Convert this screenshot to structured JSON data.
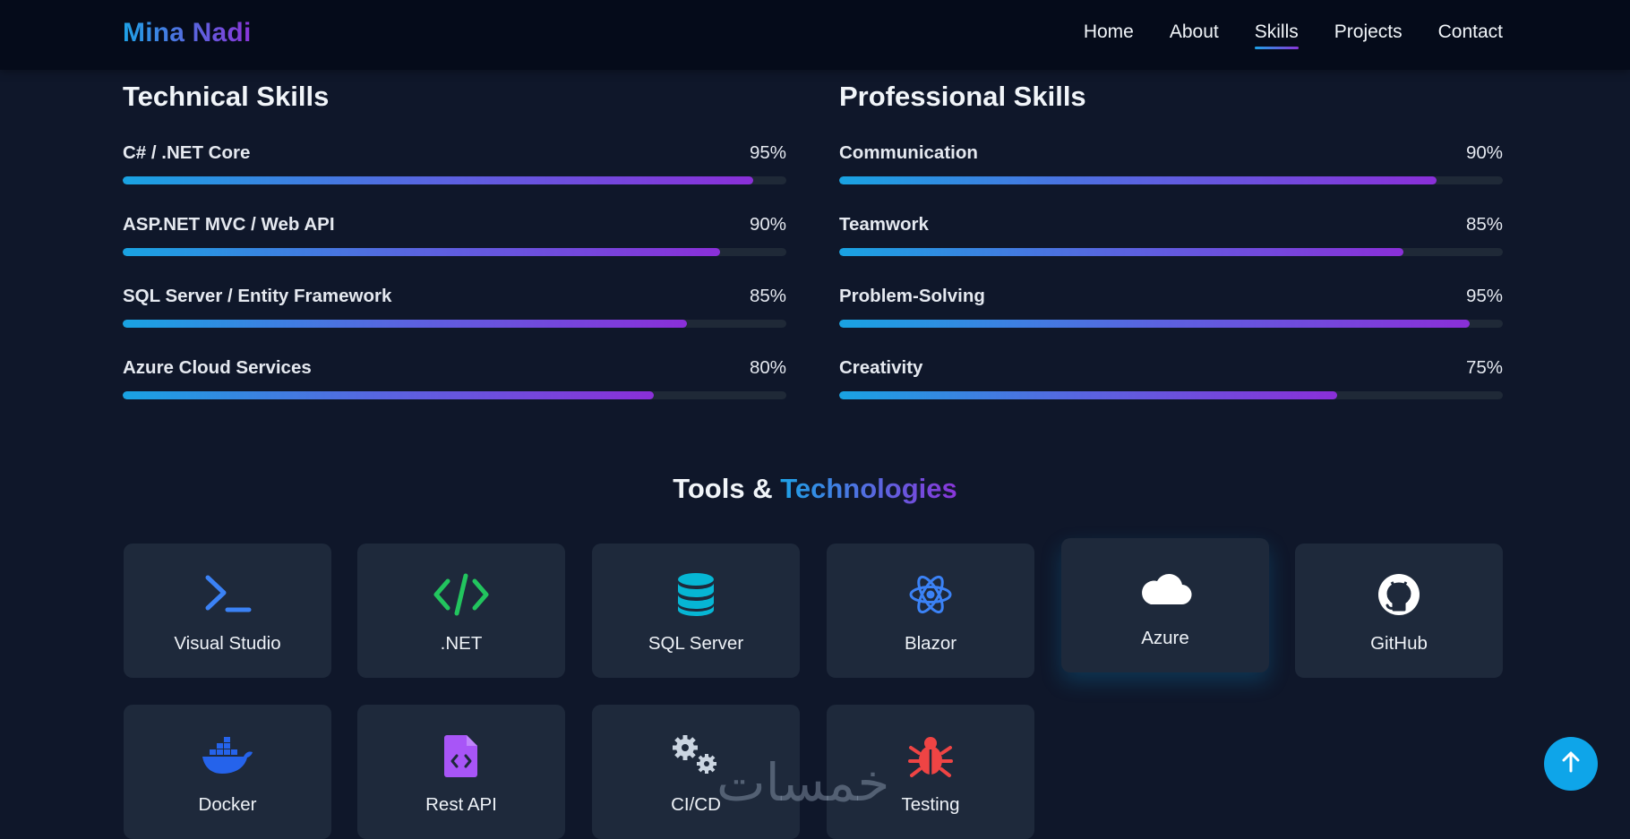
{
  "brand": "Mina Nadi",
  "nav": [
    "Home",
    "About",
    "Skills",
    "Projects",
    "Contact"
  ],
  "nav_active": "Skills",
  "technical": {
    "title": "Technical Skills",
    "skills": [
      {
        "name": "C# / .NET Core",
        "pct": "95%",
        "value": 0.95
      },
      {
        "name": "ASP.NET MVC / Web API",
        "pct": "90%",
        "value": 0.9
      },
      {
        "name": "SQL Server / Entity Framework",
        "pct": "85%",
        "value": 0.85
      },
      {
        "name": "Azure Cloud Services",
        "pct": "80%",
        "value": 0.8
      }
    ]
  },
  "professional": {
    "title": "Professional Skills",
    "skills": [
      {
        "name": "Communication",
        "pct": "90%",
        "value": 0.9
      },
      {
        "name": "Teamwork",
        "pct": "85%",
        "value": 0.85
      },
      {
        "name": "Problem-Solving",
        "pct": "95%",
        "value": 0.95
      },
      {
        "name": "Creativity",
        "pct": "75%",
        "value": 0.75
      }
    ]
  },
  "tools": {
    "title_plain": "Tools &",
    "title_accent": "Technologies",
    "items": [
      {
        "label": "Visual Studio",
        "icon": "terminal-icon",
        "color": "#3b82f6"
      },
      {
        "label": ".NET",
        "icon": "code-icon",
        "color": "#22c55e"
      },
      {
        "label": "SQL Server",
        "icon": "database-icon",
        "color": "#06b6d4"
      },
      {
        "label": "Blazor",
        "icon": "atom-icon",
        "color": "#3b82f6"
      },
      {
        "label": "Azure",
        "icon": "cloud-icon",
        "color": "#ffffff"
      },
      {
        "label": "GitHub",
        "icon": "github-icon",
        "color": "#ffffff"
      },
      {
        "label": "Docker",
        "icon": "docker-icon",
        "color": "#2563eb"
      },
      {
        "label": "Rest API",
        "icon": "file-code-icon",
        "color": "#a855f7"
      },
      {
        "label": "CI/CD",
        "icon": "gears-icon",
        "color": "#cbd5e1"
      },
      {
        "label": "Testing",
        "icon": "bug-icon",
        "color": "#ef4444"
      }
    ]
  },
  "watermark": "خمسات",
  "colors": {
    "accent_blue": "#1ea2e6",
    "accent_purple": "#8a35d9",
    "background": "#0f172a",
    "card": "#1e293b",
    "scroll_button": "#0ea5e9"
  }
}
